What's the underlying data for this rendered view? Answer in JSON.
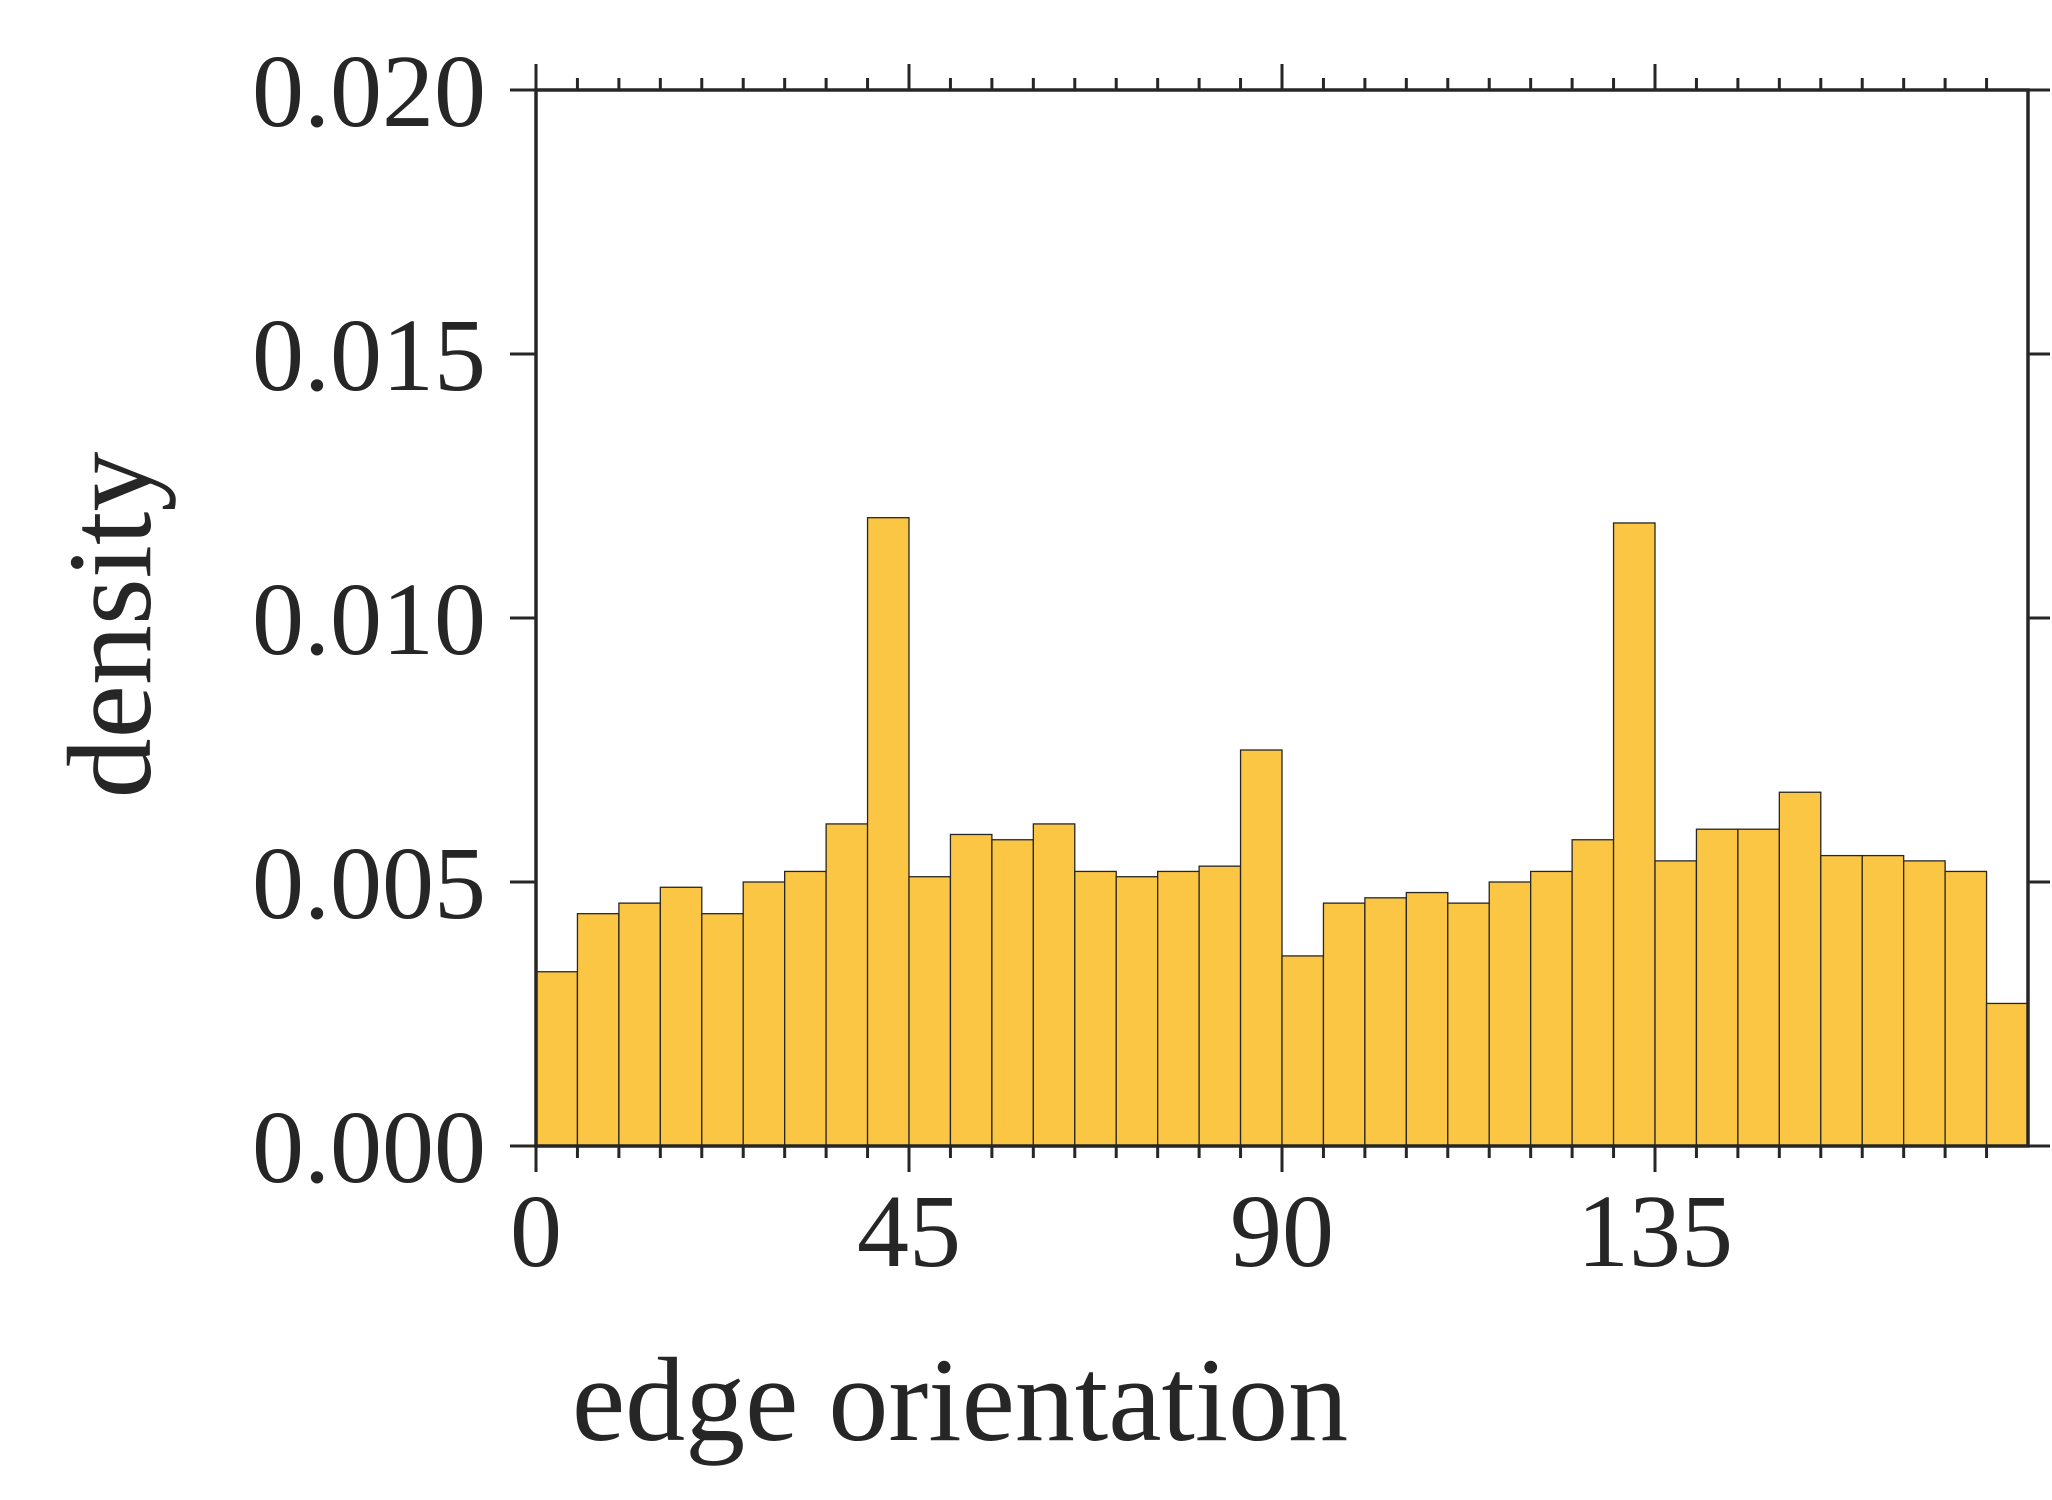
{
  "chart_data": {
    "type": "bar",
    "title": "",
    "xlabel": "edge orientation",
    "ylabel": "density",
    "xlim": [
      0,
      180
    ],
    "ylim": [
      0,
      0.02
    ],
    "x_ticks": [
      "0",
      "45",
      "90",
      "135"
    ],
    "y_ticks": [
      "0.000",
      "0.005",
      "0.010",
      "0.015",
      "0.020"
    ],
    "bin_width": 5,
    "bin_starts": [
      0,
      5,
      10,
      15,
      20,
      25,
      30,
      35,
      40,
      45,
      50,
      55,
      60,
      65,
      70,
      75,
      80,
      85,
      90,
      95,
      100,
      105,
      110,
      115,
      120,
      125,
      130,
      135,
      140,
      145,
      150,
      155,
      160,
      165,
      170,
      175
    ],
    "values": [
      0.0033,
      0.0044,
      0.0046,
      0.0049,
      0.0044,
      0.005,
      0.0052,
      0.0061,
      0.0119,
      0.0051,
      0.0059,
      0.0058,
      0.0061,
      0.0052,
      0.0051,
      0.0052,
      0.0053,
      0.0075,
      0.0036,
      0.0046,
      0.0047,
      0.0048,
      0.0046,
      0.005,
      0.0052,
      0.0058,
      0.0118,
      0.0054,
      0.006,
      0.006,
      0.0067,
      0.0055,
      0.0055,
      0.0054,
      0.0052,
      0.0027
    ],
    "bar_color": "#FCC645",
    "grid": false
  }
}
